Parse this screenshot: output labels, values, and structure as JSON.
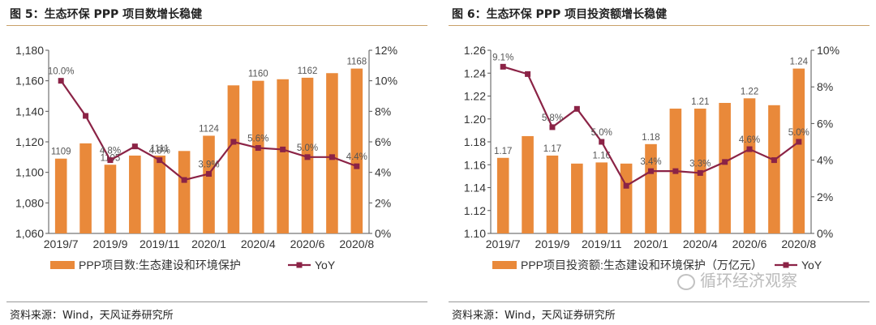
{
  "panels": {
    "left": {
      "title": "图 5：生态环保 PPP 项目数增长稳健",
      "source": "资料来源：Wind，天风证券研究所"
    },
    "right": {
      "title": "图 6：生态环保 PPP 项目投资额增长稳健",
      "source": "资料来源：Wind，天风证券研究所",
      "watermark": "循环经济观察"
    }
  },
  "chart_data": [
    {
      "type": "bar",
      "title": "生态环保 PPP 项目数增长稳健",
      "categories": [
        "2019/7",
        "2019/8",
        "2019/9",
        "2019/10",
        "2019/11",
        "2019/12",
        "2020/1",
        "2020/2",
        "2020/4",
        "2020/5",
        "2020/6",
        "2020/7",
        "2020/8"
      ],
      "x_tick_labels": [
        {
          "index": 0,
          "label": "2019/7"
        },
        {
          "index": 2,
          "label": "2019/9"
        },
        {
          "index": 4,
          "label": "2019/11"
        },
        {
          "index": 6,
          "label": "2020/1"
        },
        {
          "index": 8,
          "label": "2020/4"
        },
        {
          "index": 10,
          "label": "2020/6"
        },
        {
          "index": 12,
          "label": "2020/8"
        }
      ],
      "series": [
        {
          "name": "PPP项目数:生态建设和环境保护",
          "kind": "bar",
          "axis": "left",
          "color": "#e9893a",
          "values": [
            1109,
            1119,
            1105,
            1111,
            1111,
            1114,
            1124,
            1157,
            1160,
            1161,
            1162,
            1165,
            1168
          ]
        },
        {
          "name": "YoY",
          "kind": "line",
          "axis": "right",
          "color": "#8b2346",
          "values": [
            10.0,
            7.7,
            4.8,
            5.7,
            4.8,
            3.5,
            3.9,
            6.0,
            5.6,
            5.5,
            5.0,
            5.0,
            4.4
          ]
        }
      ],
      "bar_labels": [
        {
          "index": 0,
          "text": "1109"
        },
        {
          "index": 2,
          "text": "1105"
        },
        {
          "index": 4,
          "text": "1111"
        },
        {
          "index": 6,
          "text": "1124"
        },
        {
          "index": 8,
          "text": "1160"
        },
        {
          "index": 10,
          "text": "1162"
        },
        {
          "index": 12,
          "text": "1168"
        }
      ],
      "line_labels": [
        {
          "index": 0,
          "text": "10.0%"
        },
        {
          "index": 2,
          "text": "4.8%"
        },
        {
          "index": 4,
          "text": "4.8%"
        },
        {
          "index": 6,
          "text": "3.9%"
        },
        {
          "index": 8,
          "text": "5.6%"
        },
        {
          "index": 10,
          "text": "5.0%"
        },
        {
          "index": 12,
          "text": "4.4%"
        }
      ],
      "y_left": {
        "min": 1060,
        "max": 1180,
        "step": 20,
        "decimals": 0,
        "ticks": [
          "1,060",
          "1,080",
          "1,100",
          "1,120",
          "1,140",
          "1,160",
          "1,180"
        ]
      },
      "y_right": {
        "min": 0,
        "max": 12,
        "step": 2,
        "ticks": [
          "0%",
          "2%",
          "4%",
          "6%",
          "8%",
          "10%",
          "12%"
        ]
      },
      "legend": [
        "PPP项目数:生态建设和环境保护",
        "YoY"
      ],
      "legend_position": "bottom"
    },
    {
      "type": "bar",
      "title": "生态环保 PPP 项目投资额增长稳健",
      "categories": [
        "2019/7",
        "2019/8",
        "2019/9",
        "2019/10",
        "2019/11",
        "2019/12",
        "2020/1",
        "2020/2",
        "2020/4",
        "2020/5",
        "2020/6",
        "2020/7",
        "2020/8"
      ],
      "x_tick_labels": [
        {
          "index": 0,
          "label": "2019/7"
        },
        {
          "index": 2,
          "label": "2019/9"
        },
        {
          "index": 4,
          "label": "2019/11"
        },
        {
          "index": 6,
          "label": "2020/1"
        },
        {
          "index": 8,
          "label": "2020/4"
        },
        {
          "index": 10,
          "label": "2020/6"
        },
        {
          "index": 12,
          "label": "2020/8"
        }
      ],
      "series": [
        {
          "name": "PPP项目投资额:生态建设和环境保护（万亿元）",
          "kind": "bar",
          "axis": "left",
          "color": "#e9893a",
          "values": [
            1.166,
            1.185,
            1.168,
            1.161,
            1.162,
            1.161,
            1.178,
            1.209,
            1.209,
            1.214,
            1.218,
            1.212,
            1.244
          ]
        },
        {
          "name": "YoY",
          "kind": "line",
          "axis": "right",
          "color": "#8b2346",
          "values": [
            9.1,
            8.7,
            5.8,
            6.8,
            5.0,
            2.6,
            3.4,
            3.4,
            3.3,
            3.9,
            4.6,
            4.0,
            5.0
          ]
        }
      ],
      "bar_labels": [
        {
          "index": 0,
          "text": "1.17"
        },
        {
          "index": 2,
          "text": "1.17"
        },
        {
          "index": 4,
          "text": "1.16"
        },
        {
          "index": 6,
          "text": "1.18"
        },
        {
          "index": 8,
          "text": "1.21"
        },
        {
          "index": 10,
          "text": "1.22"
        },
        {
          "index": 12,
          "text": "1.24"
        }
      ],
      "line_labels": [
        {
          "index": 0,
          "text": "9.1%"
        },
        {
          "index": 2,
          "text": "5.8%"
        },
        {
          "index": 4,
          "text": "5.0%"
        },
        {
          "index": 6,
          "text": "3.4%"
        },
        {
          "index": 8,
          "text": "3.3%"
        },
        {
          "index": 10,
          "text": "4.6%"
        },
        {
          "index": 12,
          "text": "5.0%"
        }
      ],
      "y_left": {
        "min": 1.1,
        "max": 1.26,
        "step": 0.02,
        "decimals": 2,
        "ticks": [
          "1.10",
          "1.12",
          "1.14",
          "1.16",
          "1.18",
          "1.20",
          "1.22",
          "1.24",
          "1.26"
        ]
      },
      "y_right": {
        "min": 0,
        "max": 10,
        "step": 2,
        "ticks": [
          "0%",
          "2%",
          "4%",
          "6%",
          "8%",
          "10%"
        ]
      },
      "legend": [
        "PPP项目投资额:生态建设和环境保护（万亿元）",
        "YoY"
      ],
      "legend_position": "bottom"
    }
  ]
}
